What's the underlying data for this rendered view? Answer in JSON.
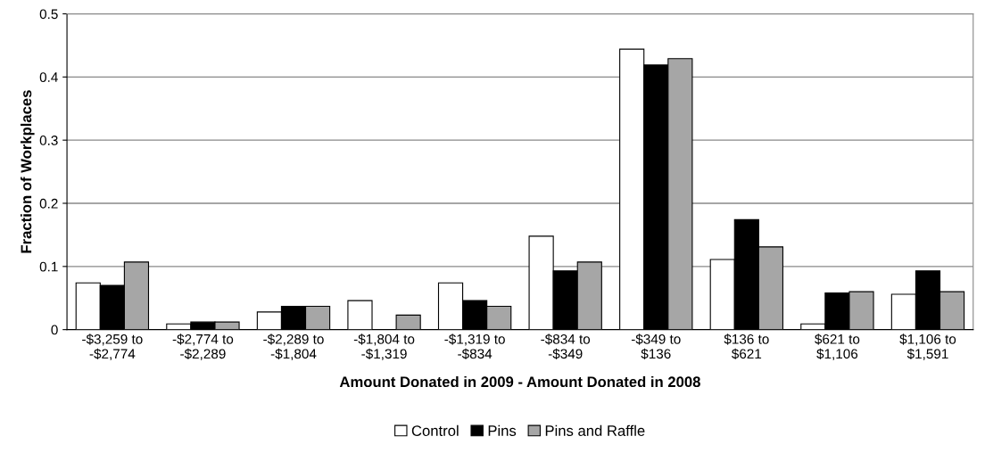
{
  "chart_data": {
    "type": "bar",
    "xlabel": "Amount Donated in 2009 - Amount Donated in 2008",
    "ylabel": "Fraction of Workplaces",
    "categories": [
      "-$3,259 to\n-$2,774",
      "-$2,774 to\n-$2,289",
      "-$2,289 to\n-$1,804",
      "-$1,804 to\n-$1,319",
      "-$1,319 to\n-$834",
      "-$834 to\n-$349",
      "-$349 to\n$136",
      "$136 to\n$621",
      "$621 to\n$1,106",
      "$1,106 to\n$1,591"
    ],
    "series": [
      {
        "name": "Control",
        "color": "#ffffff",
        "values": [
          0.074,
          0.009,
          0.028,
          0.046,
          0.074,
          0.148,
          0.444,
          0.111,
          0.009,
          0.056
        ]
      },
      {
        "name": "Pins",
        "color": "#000000",
        "values": [
          0.07,
          0.012,
          0.037,
          0,
          0.046,
          0.093,
          0.419,
          0.174,
          0.058,
          0.093
        ]
      },
      {
        "name": "Pins and Raffle",
        "color": "#a6a6a6",
        "values": [
          0.107,
          0.012,
          0.037,
          0.023,
          0.037,
          0.107,
          0.429,
          0.131,
          0.06,
          0.06
        ]
      }
    ],
    "ylim": [
      0,
      0.5
    ],
    "yticks": [
      0,
      0.1,
      0.2,
      0.3,
      0.4,
      0.5
    ],
    "grid": "y",
    "legend": "bottom"
  }
}
